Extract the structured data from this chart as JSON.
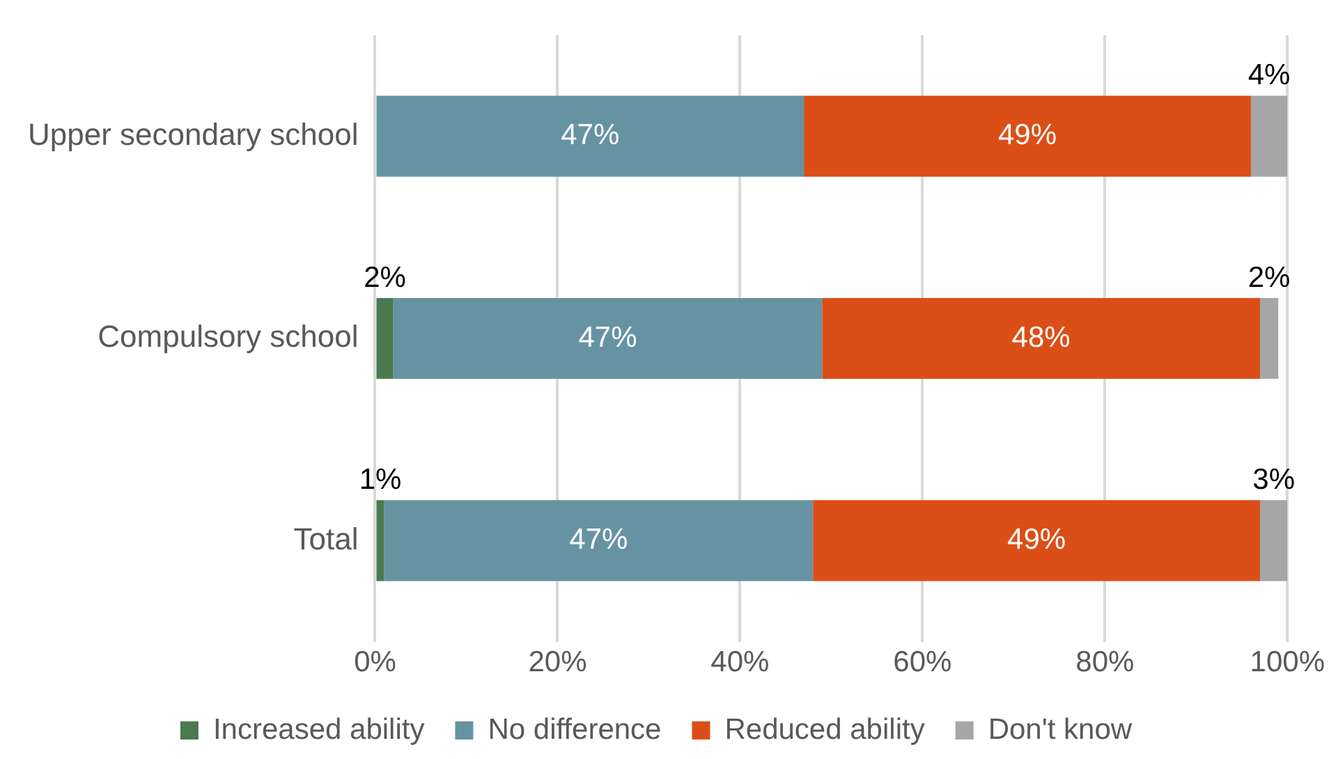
{
  "chart_data": {
    "type": "bar",
    "orientation": "horizontal",
    "stacked": true,
    "categories": [
      "Upper secondary school",
      "Compulsory school",
      "Total"
    ],
    "series": [
      {
        "name": "Increased ability",
        "color": "#4a7a4e",
        "values": [
          0,
          2,
          1
        ],
        "value_labels": [
          null,
          "2%",
          "1%"
        ]
      },
      {
        "name": "No difference",
        "color": "#6693a2",
        "values": [
          47,
          47,
          47
        ],
        "value_labels": [
          "47%",
          "47%",
          "47%"
        ]
      },
      {
        "name": "Reduced ability",
        "color": "#dc4e17",
        "values": [
          49,
          48,
          49
        ],
        "value_labels": [
          "49%",
          "48%",
          "49%"
        ]
      },
      {
        "name": "Don't know",
        "color": "#a6a6a6",
        "values": [
          4,
          2,
          3
        ],
        "value_labels": [
          "4%",
          "2%",
          "3%"
        ]
      }
    ],
    "xlim": [
      0,
      100
    ],
    "xticks": [
      {
        "value": 0,
        "label": "0%"
      },
      {
        "value": 20,
        "label": "20%"
      },
      {
        "value": 40,
        "label": "40%"
      },
      {
        "value": 60,
        "label": "60%"
      },
      {
        "value": 80,
        "label": "80%"
      },
      {
        "value": 100,
        "label": "100%"
      }
    ],
    "grid": "x",
    "legend": "bottom"
  }
}
